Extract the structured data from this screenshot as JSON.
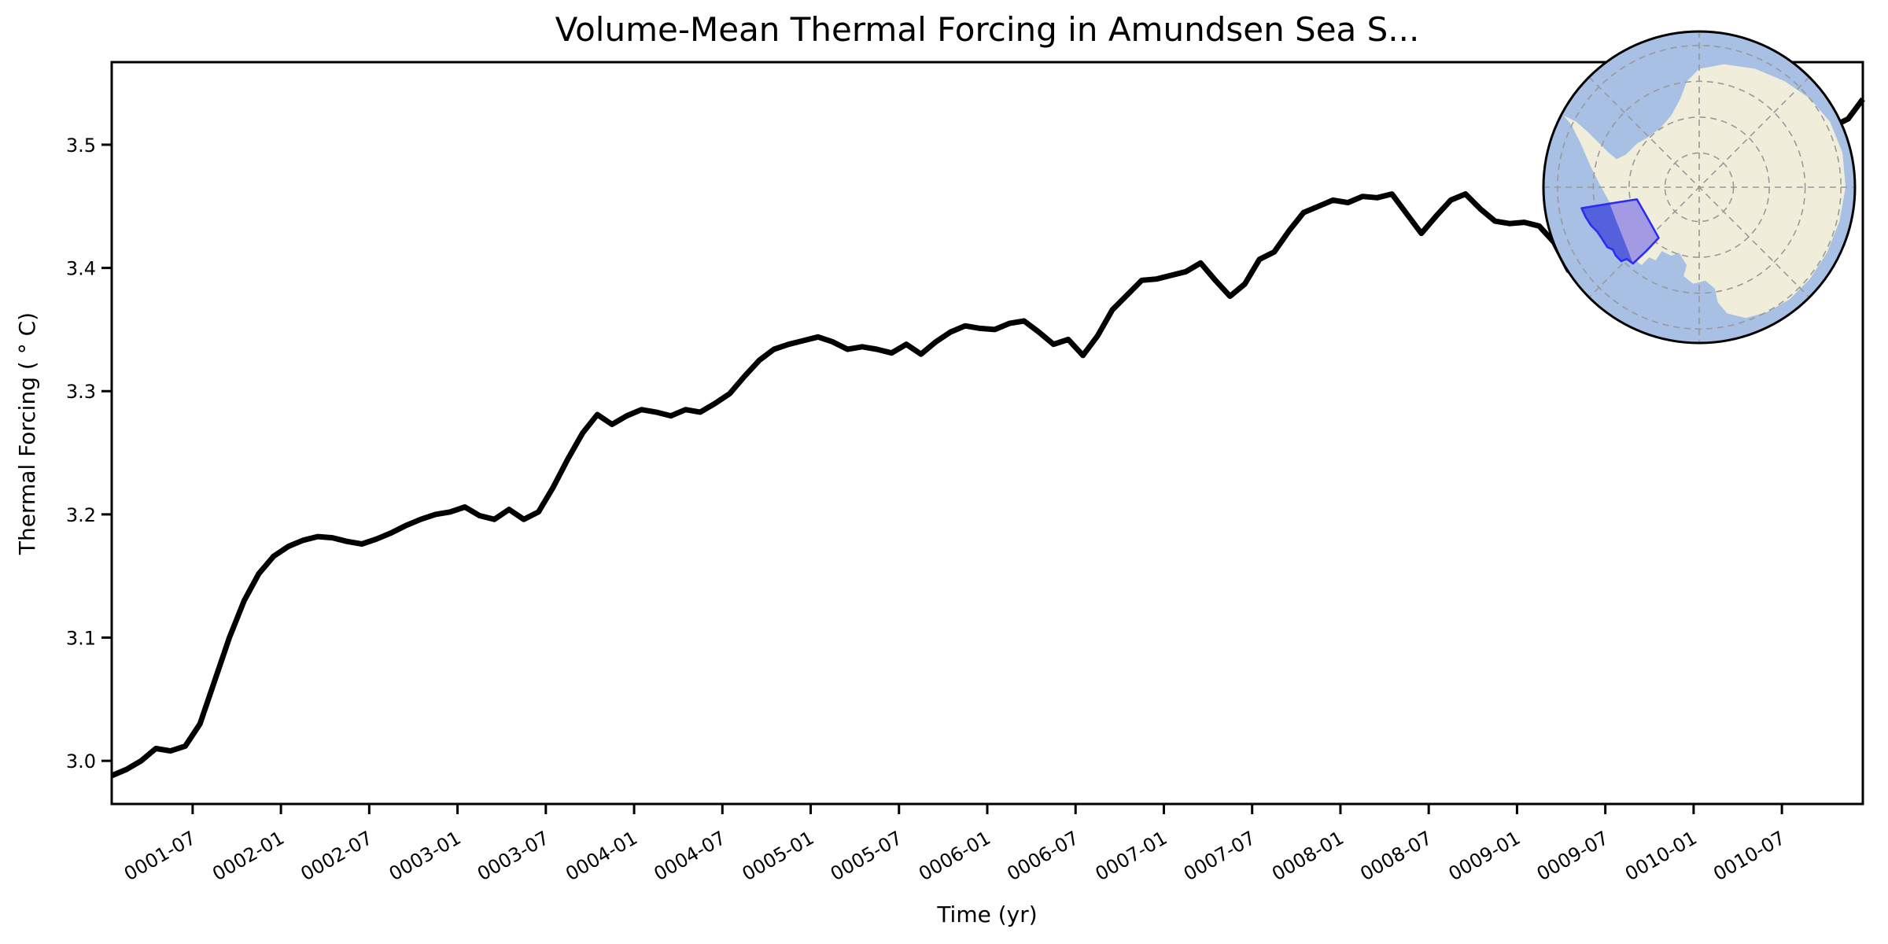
{
  "page": {
    "background": "#ffffff"
  },
  "chart_data": {
    "type": "line",
    "title": "Volume-Mean Thermal Forcing in Amundsen Sea S...",
    "xlabel": "Time (yr)",
    "ylabel": "Thermal Forcing ( ° C)",
    "grid": false,
    "legend": "none",
    "line_color": "#000000",
    "line_width": 7,
    "ylim": [
      2.965,
      3.567
    ],
    "y_ticks": [
      "3.0",
      "3.1",
      "3.2",
      "3.3",
      "3.4",
      "3.5"
    ],
    "x_tick_labels": [
      "0001-07",
      "0002-01",
      "0002-07",
      "0003-01",
      "0003-07",
      "0004-01",
      "0004-07",
      "0005-01",
      "0005-07",
      "0006-01",
      "0006-07",
      "0007-01",
      "0007-07",
      "0008-01",
      "0008-07",
      "0009-01",
      "0009-07",
      "0010-01",
      "0010-07"
    ],
    "x_start_month": "0001-01",
    "x_end_month": "0010-12",
    "x_step": "1 month",
    "n_points": 120,
    "series": [
      {
        "name": "volume_mean_thermal_forcing",
        "values": [
          2.988,
          2.993,
          3.0,
          3.01,
          3.008,
          3.012,
          3.03,
          3.065,
          3.1,
          3.13,
          3.152,
          3.166,
          3.174,
          3.179,
          3.182,
          3.181,
          3.178,
          3.176,
          3.18,
          3.185,
          3.191,
          3.196,
          3.2,
          3.202,
          3.206,
          3.199,
          3.196,
          3.204,
          3.196,
          3.202,
          3.222,
          3.245,
          3.266,
          3.281,
          3.273,
          3.28,
          3.285,
          3.283,
          3.28,
          3.285,
          3.283,
          3.29,
          3.298,
          3.312,
          3.325,
          3.334,
          3.338,
          3.341,
          3.344,
          3.34,
          3.334,
          3.336,
          3.334,
          3.331,
          3.338,
          3.33,
          3.34,
          3.348,
          3.353,
          3.351,
          3.35,
          3.355,
          3.357,
          3.348,
          3.338,
          3.342,
          3.329,
          3.345,
          3.366,
          3.378,
          3.39,
          3.391,
          3.394,
          3.397,
          3.404,
          3.39,
          3.377,
          3.387,
          3.407,
          3.413,
          3.43,
          3.445,
          3.45,
          3.455,
          3.453,
          3.458,
          3.457,
          3.46,
          3.444,
          3.428,
          3.442,
          3.455,
          3.46,
          3.448,
          3.438,
          3.436,
          3.437,
          3.434,
          3.421,
          3.398,
          3.393,
          3.4,
          3.415,
          3.428,
          3.437,
          3.443,
          3.446,
          3.45,
          3.455,
          3.46,
          3.466,
          3.472,
          3.478,
          3.485,
          3.492,
          3.5,
          3.508,
          3.515,
          3.521,
          3.537
        ]
      }
    ]
  },
  "inset_map": {
    "description": "South polar stereographic map of Antarctica with Amundsen Sea sector highlighted",
    "ocean_color": "#a7c0e4",
    "land_color": "#f0eedb",
    "graticule_color": "#999999",
    "outline_color": "#000000",
    "highlight_region": {
      "name": "Amundsen Sea sector",
      "fill_outer": "#5361dd",
      "fill_inner": "#a29ae2",
      "border_color": "#2d2df0"
    }
  }
}
